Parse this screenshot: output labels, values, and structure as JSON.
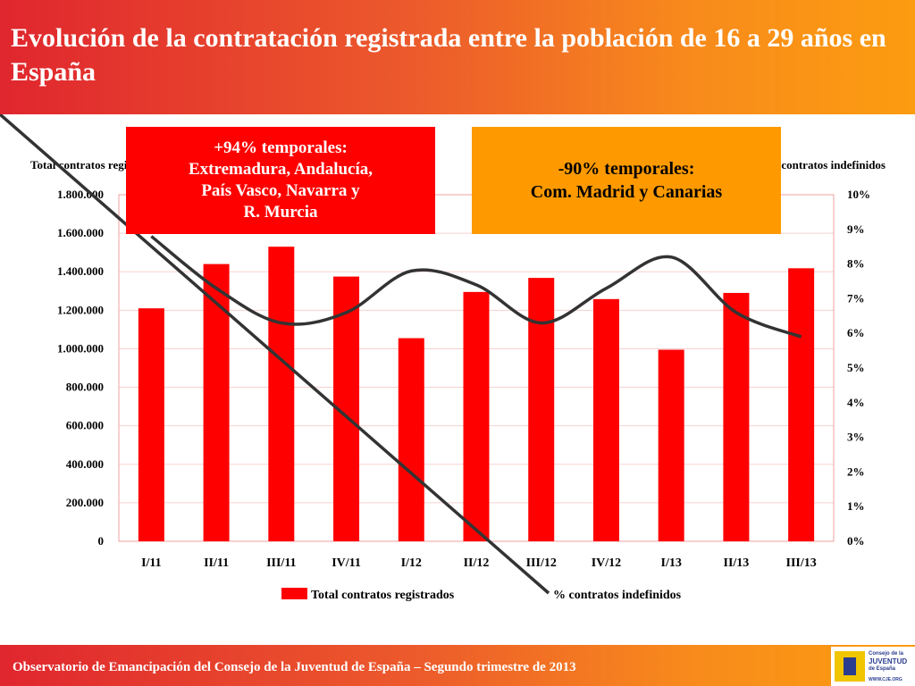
{
  "slide": {
    "title": "Evolución de la contratación registrada entre la población de 16 a 29 años en España",
    "footer": "Observatorio de Emancipación del Consejo de la Juventud de España – Segundo trimestre de 2013",
    "logo_lines": [
      "Consejo de la",
      "JUVENTUD",
      "de España",
      "WWW.CJE.ORG"
    ]
  },
  "callouts": {
    "left": {
      "lines": [
        "+94% temporales:",
        "Extremadura, Andalucía,",
        "País Vasco, Navarra y",
        "R. Murcia"
      ],
      "color": "#fe0000"
    },
    "right": {
      "lines": [
        "-90% temporales:",
        "Com. Madrid y Canarias"
      ],
      "color": "#fe9a00"
    }
  },
  "chart_data": {
    "type": "bar",
    "categories": [
      "I/11",
      "II/11",
      "III/11",
      "IV/11",
      "I/12",
      "II/12",
      "III/12",
      "IV/12",
      "I/13",
      "II/13",
      "III/13"
    ],
    "series": [
      {
        "name": "Total contratos registrados",
        "type": "bar",
        "axis": "left",
        "color": "#fe0000",
        "values": [
          1210000,
          1440000,
          1530000,
          1375000,
          1055000,
          1295000,
          1368000,
          1258000,
          995000,
          1290000,
          1418000
        ]
      },
      {
        "name": "% contratos indefinidos",
        "type": "line",
        "axis": "right",
        "color": "#333333",
        "values": [
          8.8,
          7.3,
          6.3,
          6.6,
          7.8,
          7.4,
          6.3,
          7.3,
          8.2,
          6.6,
          5.9
        ]
      }
    ],
    "ylabel": "Total contratos registrados",
    "y2label": "% contratos indefinidos",
    "ylim": [
      0,
      1800000
    ],
    "y2lim": [
      0,
      10
    ],
    "yticks": [
      "0",
      "200.000",
      "400.000",
      "600.000",
      "800.000",
      "1.000.000",
      "1.200.000",
      "1.400.000",
      "1.600.000",
      "1.800.000"
    ],
    "y2ticks": [
      "0%",
      "1%",
      "2%",
      "3%",
      "4%",
      "5%",
      "6%",
      "7%",
      "8%",
      "9%",
      "10%"
    ],
    "grid": true,
    "legend": "bottom"
  }
}
